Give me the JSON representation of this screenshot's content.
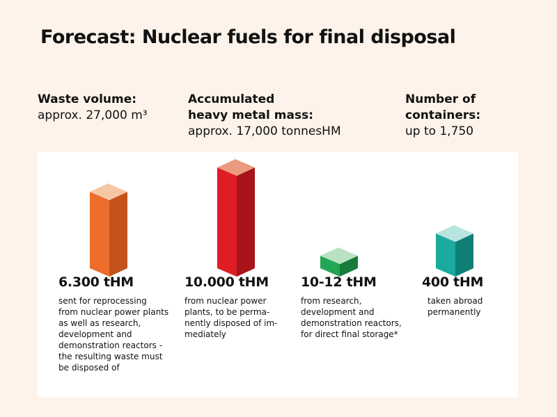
{
  "title": "Forecast: Nuclear fuels for final disposal",
  "stats": [
    {
      "heading_lines": [
        "Waste volume:"
      ],
      "value": "approx. 27,000 m³"
    },
    {
      "heading_lines": [
        "Accumulated",
        "heavy metal mass:"
      ],
      "value": "approx. 17,000 tonnesHM"
    },
    {
      "heading_lines": [
        "Number of",
        "containers:"
      ],
      "value": "up to 1,750"
    }
  ],
  "chart_data": {
    "type": "bar",
    "unit": "tHM",
    "categories": [
      "sent for reprocessing from nuclear power plants as well as research, development and demonstration reactors - the resulting waste must be disposed of",
      "from nuclear power plants, to be permanently disposed of immediately",
      "from research, development and demonstration reactors, for direct final storage*",
      "taken abroad permanently"
    ],
    "values": [
      6300,
      10000,
      12,
      400
    ],
    "labels": [
      "6.300 tHM",
      "10.000 tHM",
      "10-12 tHM",
      "400 tHM"
    ],
    "colors": [
      "#e8652a",
      "#d91e26",
      "#1f9a4c",
      "#16a095"
    ],
    "bars": [
      {
        "label": "6.300 tHM",
        "desc_lines": [
          "sent for reprocessing",
          "from nuclear power plants",
          "as well as research,",
          "development and",
          "demonstration reactors -",
          "the resulting waste must",
          "be disposed of"
        ],
        "front": "#ec6d2c",
        "side": "#c4521c",
        "top": "#f6c7a3"
      },
      {
        "label": "10.000 tHM",
        "desc_lines": [
          "from nuclear power",
          "plants, to be perma-",
          "nently disposed of im-",
          "mediately"
        ],
        "front": "#de1d24",
        "side": "#a8141a",
        "top": "#ec9a80"
      },
      {
        "label": "10-12 tHM",
        "desc_lines": [
          "from research,",
          "development and",
          "demonstration reactors,",
          "for direct final storage*"
        ],
        "front": "#22a653",
        "side": "#177c3b",
        "top": "#b9e2c2"
      },
      {
        "label": "400 tHM",
        "desc_lines": [
          "taken abroad",
          "permanently"
        ],
        "front": "#1aab9e",
        "side": "#0f7f75",
        "top": "#b7e4df"
      }
    ]
  }
}
